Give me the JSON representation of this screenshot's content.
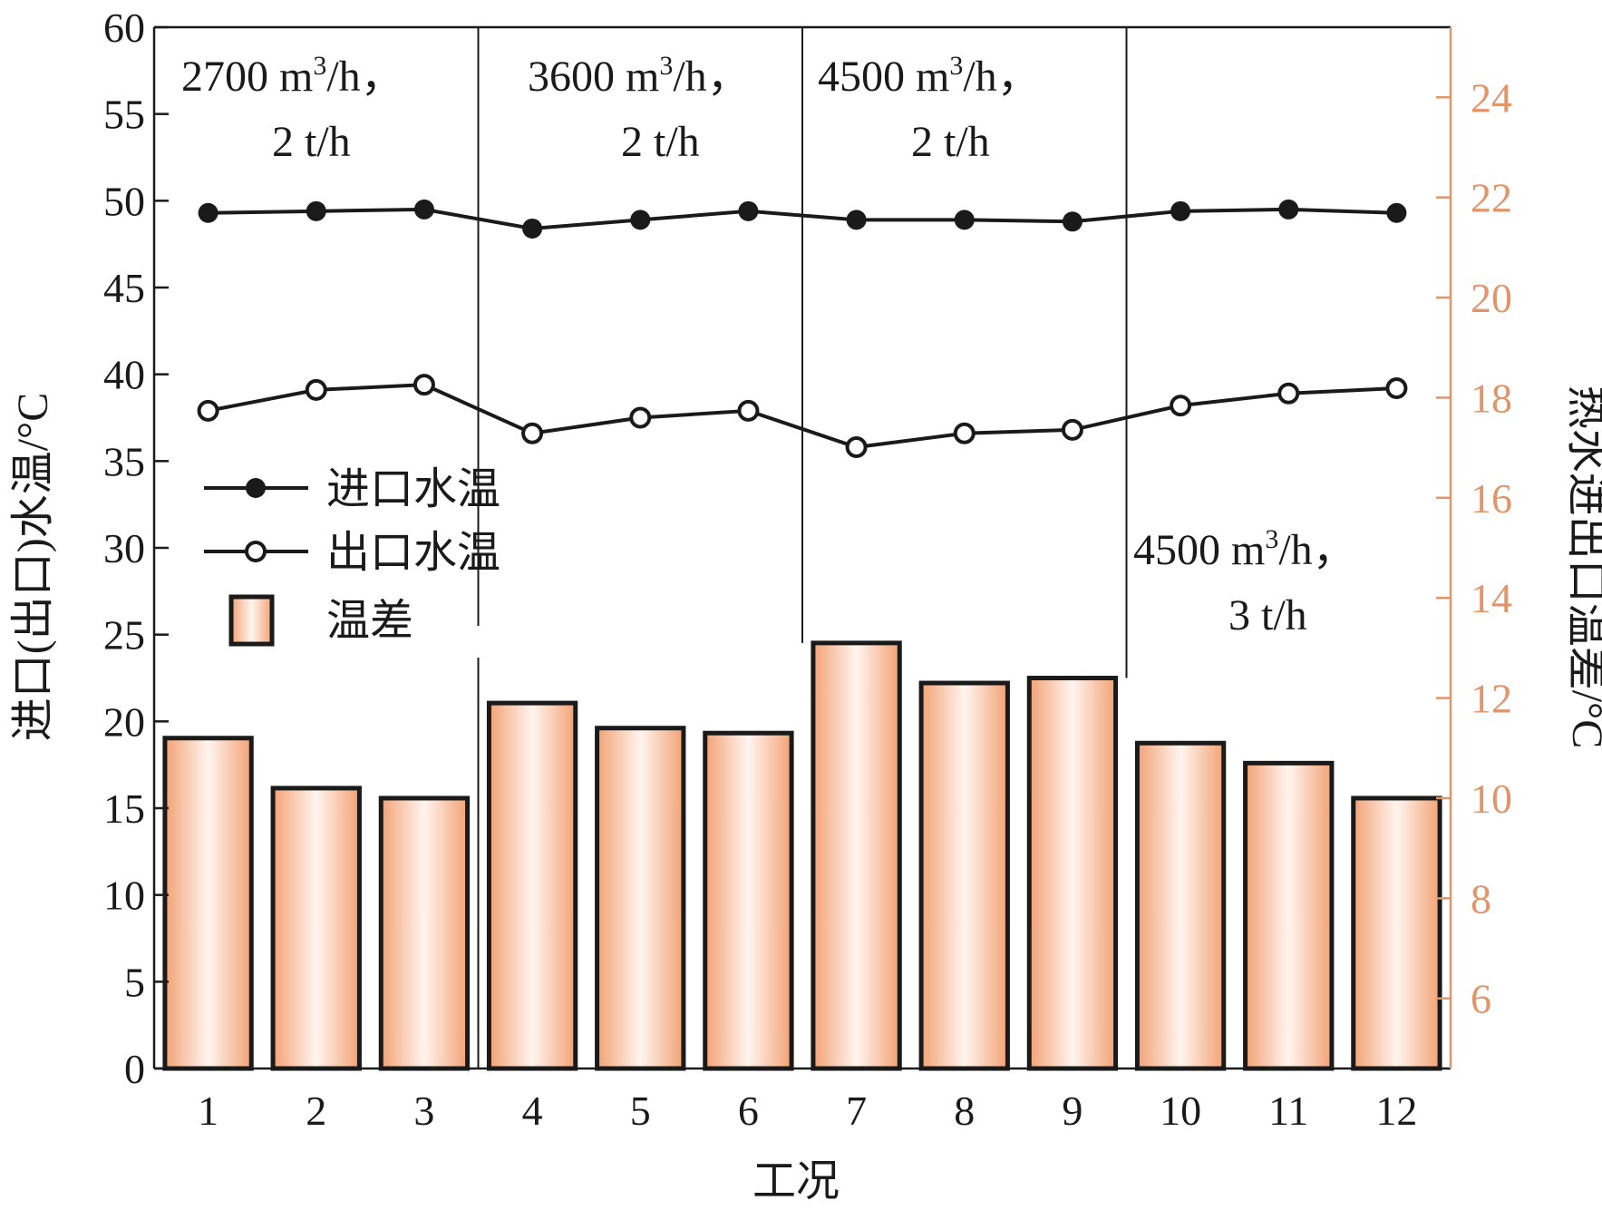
{
  "chart_data": {
    "type": "bar+line",
    "title": "",
    "xlabel": "工况",
    "ylabel_left": "进口(出口)水温/°C",
    "ylabel_right": "热水进出口温差/°C",
    "categories": [
      "1",
      "2",
      "3",
      "4",
      "5",
      "6",
      "7",
      "8",
      "9",
      "10",
      "11",
      "12"
    ],
    "left_axis": {
      "range": [
        0,
        60
      ],
      "ticks": [
        "0",
        "5",
        "10",
        "15",
        "20",
        "25",
        "30",
        "35",
        "40",
        "45",
        "50",
        "55",
        "60"
      ]
    },
    "right_axis": {
      "range": [
        4.6,
        25.4
      ],
      "ticks": [
        "6",
        "8",
        "10",
        "12",
        "14",
        "16",
        "18",
        "20",
        "22",
        "24"
      ]
    },
    "series": [
      {
        "name": "进口水温",
        "type": "line",
        "marker": "filled-circle",
        "axis": "left",
        "values": [
          49.3,
          49.4,
          49.5,
          48.4,
          48.9,
          49.4,
          48.9,
          48.9,
          48.8,
          49.4,
          49.5,
          49.3
        ]
      },
      {
        "name": "出口水温",
        "type": "line",
        "marker": "open-circle",
        "axis": "left",
        "values": [
          37.9,
          39.1,
          39.4,
          36.6,
          37.5,
          37.9,
          35.8,
          36.6,
          36.8,
          38.2,
          38.9,
          39.2
        ]
      },
      {
        "name": "温差",
        "type": "bar",
        "axis": "right",
        "values": [
          11.2,
          10.2,
          10.0,
          11.9,
          11.4,
          11.3,
          13.1,
          12.3,
          12.4,
          11.1,
          10.7,
          10.0
        ]
      }
    ],
    "annotations": [
      {
        "line1": "2700 m",
        "sup": "3",
        "line1_end": "/h，",
        "line2": "2 t/h"
      },
      {
        "line1": "3600 m",
        "sup": "3",
        "line1_end": "/h，",
        "line2": "2 t/h"
      },
      {
        "line1": "4500 m",
        "sup": "3",
        "line1_end": "/h，",
        "line2": "2 t/h"
      },
      {
        "line1": "4500 m",
        "sup": "3",
        "line1_end": "/h，",
        "line2": "3 t/h"
      }
    ],
    "legend": [
      "进口水温",
      "出口水温",
      "温差"
    ],
    "legend_position": "middle-left"
  }
}
